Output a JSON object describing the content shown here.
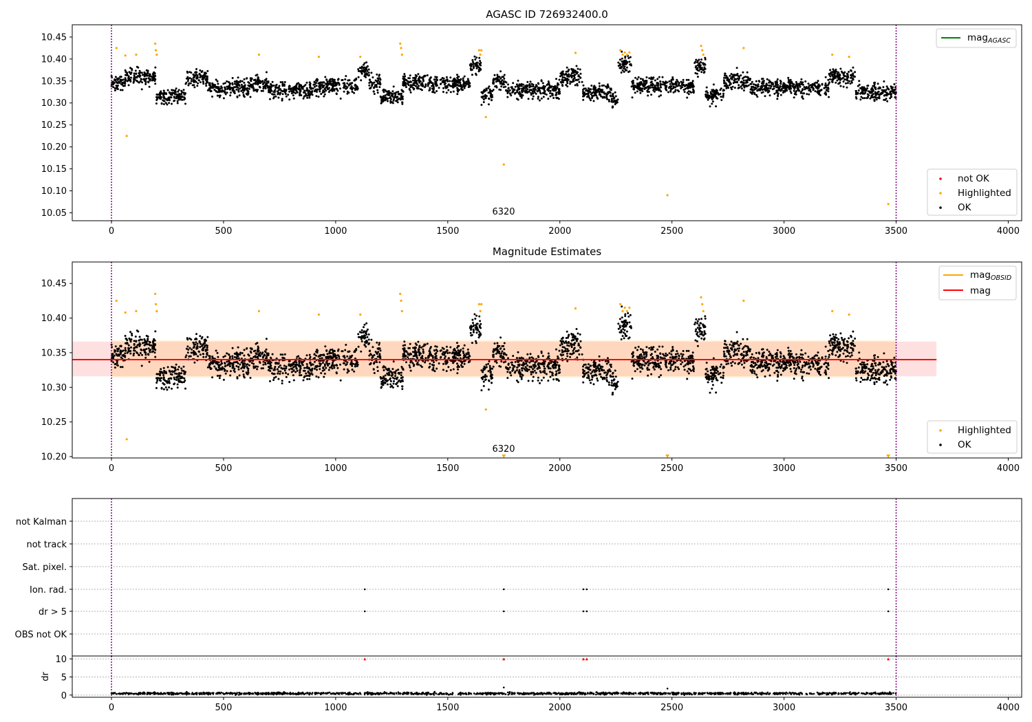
{
  "chart_data": [
    {
      "type": "scatter",
      "title": "AGASC ID 726932400.0",
      "xlim": [
        -175,
        4060
      ],
      "ylim": [
        10.032,
        10.478
      ],
      "xticks": [
        0,
        500,
        1000,
        1500,
        2000,
        2500,
        3000,
        3500,
        4000
      ],
      "yticks": [
        10.05,
        10.1,
        10.15,
        10.2,
        10.25,
        10.3,
        10.35,
        10.4,
        10.45
      ],
      "ytick_labels": [
        "10.05",
        "10.10",
        "10.15",
        "10.20",
        "10.25",
        "10.30",
        "10.35",
        "10.40",
        "10.45"
      ],
      "obsid_bounds": [
        0,
        3500
      ],
      "obsid_label": {
        "x": 1750,
        "text": "6320"
      },
      "line_legend": [
        {
          "name": "mag",
          "sub": "AGASC",
          "color": "#008000"
        }
      ],
      "marker_legend": [
        {
          "name": "not OK",
          "color": "#ff0000"
        },
        {
          "name": "Highlighted",
          "color": "#ffa500"
        },
        {
          "name": "OK",
          "color": "#000000"
        }
      ],
      "series": [
        {
          "name": "OK",
          "color": "#000000",
          "segments": [
            [
              0,
              60,
              10.345
            ],
            [
              60,
              200,
              10.36
            ],
            [
              200,
              330,
              10.315
            ],
            [
              330,
              430,
              10.355
            ],
            [
              430,
              620,
              10.335
            ],
            [
              620,
              700,
              10.345
            ],
            [
              700,
              900,
              10.33
            ],
            [
              900,
              1100,
              10.34
            ],
            [
              1100,
              1150,
              10.37
            ],
            [
              1150,
              1200,
              10.345
            ],
            [
              1200,
              1300,
              10.315
            ],
            [
              1300,
              1600,
              10.345
            ],
            [
              1600,
              1650,
              10.385
            ],
            [
              1650,
              1700,
              10.32
            ],
            [
              1700,
              1760,
              10.35
            ],
            [
              1760,
              2000,
              10.33
            ],
            [
              2000,
              2100,
              10.36
            ],
            [
              2100,
              2230,
              10.325
            ],
            [
              2230,
              2260,
              10.305
            ],
            [
              2260,
              2320,
              10.39
            ],
            [
              2320,
              2600,
              10.34
            ],
            [
              2600,
              2650,
              10.385
            ],
            [
              2650,
              2730,
              10.315
            ],
            [
              2730,
              2850,
              10.35
            ],
            [
              2850,
              3200,
              10.335
            ],
            [
              3200,
              3320,
              10.36
            ],
            [
              3320,
              3500,
              10.325
            ]
          ]
        },
        {
          "name": "Highlighted",
          "color": "#ffa500",
          "points": [
            [
              22,
              10.425
            ],
            [
              62,
              10.408
            ],
            [
              68,
              10.225
            ],
            [
              110,
              10.41
            ],
            [
              195,
              10.435
            ],
            [
              198,
              10.42
            ],
            [
              202,
              10.41
            ],
            [
              658,
              10.41
            ],
            [
              925,
              10.405
            ],
            [
              1110,
              10.405
            ],
            [
              1288,
              10.435
            ],
            [
              1292,
              10.425
            ],
            [
              1296,
              10.41
            ],
            [
              1640,
              10.42
            ],
            [
              1645,
              10.41
            ],
            [
              1650,
              10.42
            ],
            [
              1670,
              10.268
            ],
            [
              1750,
              10.16
            ],
            [
              2070,
              10.414
            ],
            [
              2270,
              10.42
            ],
            [
              2280,
              10.41
            ],
            [
              2290,
              10.415
            ],
            [
              2300,
              10.41
            ],
            [
              2310,
              10.415
            ],
            [
              2480,
              10.09
            ],
            [
              2630,
              10.43
            ],
            [
              2635,
              10.42
            ],
            [
              2640,
              10.41
            ],
            [
              2820,
              10.425
            ],
            [
              3215,
              10.41
            ],
            [
              3290,
              10.405
            ],
            [
              3465,
              10.07
            ]
          ]
        }
      ]
    },
    {
      "type": "scatter",
      "title": "Magnitude Estimates",
      "xlim": [
        -175,
        4060
      ],
      "ylim": [
        10.198,
        10.481
      ],
      "xticks": [
        0,
        500,
        1000,
        1500,
        2000,
        2500,
        3000,
        3500,
        4000
      ],
      "yticks": [
        10.2,
        10.25,
        10.3,
        10.35,
        10.4,
        10.45
      ],
      "ytick_labels": [
        "10.20",
        "10.25",
        "10.30",
        "10.35",
        "10.40",
        "10.45"
      ],
      "obsid_bounds": [
        0,
        3500
      ],
      "obsid_label": {
        "x": 1750,
        "text": "6320"
      },
      "mean_mag": 10.34,
      "band_obsid": [
        10.316,
        10.366
      ],
      "band_all": [
        10.316,
        10.366
      ],
      "band_xrange": [
        -175,
        3680
      ],
      "line_legend": [
        {
          "name": "mag",
          "sub": "OBSID",
          "color": "#ffa500"
        },
        {
          "name": "mag",
          "sub": "",
          "color": "#ff0000"
        }
      ],
      "marker_legend": [
        {
          "name": "Highlighted",
          "color": "#ffa500"
        },
        {
          "name": "OK",
          "color": "#000000"
        }
      ],
      "offscale_markers": [
        1750,
        2480,
        3465
      ]
    },
    {
      "type": "scatter",
      "title": "",
      "xlim": [
        -175,
        4060
      ],
      "flag_rows": [
        "not Kalman",
        "not track",
        "Sat. pixel.",
        "Ion. rad.",
        "dr > 5",
        "OBS not OK"
      ],
      "flag_points": {
        "Ion. rad.": [
          1130,
          1750,
          2105,
          2120,
          3465
        ],
        "dr > 5": [
          1130,
          1750,
          2105,
          2120,
          3465
        ]
      },
      "dr_ylabel": "dr",
      "dr_yticks": [
        0,
        5,
        10
      ],
      "dr_ylim": [
        -0.6,
        10.8
      ],
      "dr_clip_markers": [
        1130,
        1750,
        2105,
        2120,
        3465
      ],
      "dr_outliers": [
        [
          1750,
          2.1
        ],
        [
          2480,
          1.8
        ]
      ],
      "xticks": [
        0,
        500,
        1000,
        1500,
        2000,
        2500,
        3000,
        3500,
        4000
      ]
    }
  ]
}
